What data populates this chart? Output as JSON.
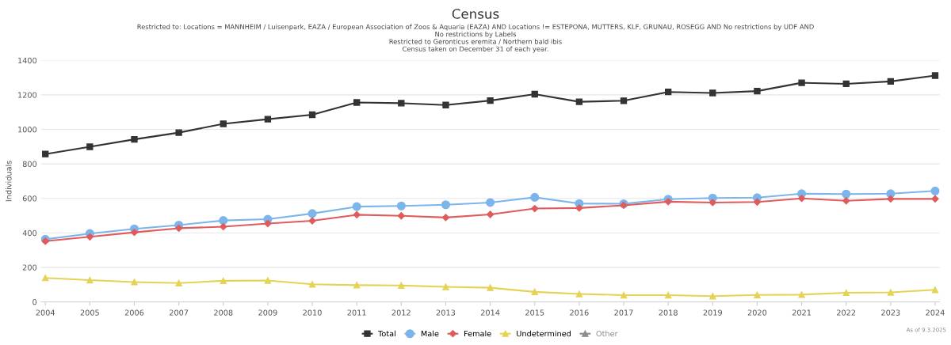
{
  "chart_data": {
    "type": "line",
    "title": "Census",
    "subtitle": "Restricted to: Locations = MANNHEIM / Luisenpark, EAZA / European Association of Zoos & Aquaria (EAZA) AND Locations != ESTEPONA, MUTTERS, KLF, GRUNAU, ROSEGG AND No restrictions by UDF AND\nNo restrictions by Labels\nRestricted to Geronticus eremita / Northern bald ibis\nCensus taken on December 31 of each year.",
    "ylabel": "Individuals",
    "categories": [
      "2004",
      "2005",
      "2006",
      "2007",
      "2008",
      "2009",
      "2010",
      "2011",
      "2012",
      "2013",
      "2014",
      "2015",
      "2016",
      "2017",
      "2018",
      "2019",
      "2020",
      "2021",
      "2022",
      "2023",
      "2024"
    ],
    "series": [
      {
        "name": "Total",
        "color": "#333333",
        "marker": "square",
        "values": [
          857,
          899,
          942,
          981,
          1032,
          1059,
          1085,
          1156,
          1152,
          1141,
          1167,
          1204,
          1160,
          1166,
          1217,
          1211,
          1222,
          1270,
          1264,
          1278,
          1312
        ]
      },
      {
        "name": "Male",
        "color": "#7cb5ec",
        "marker": "circle",
        "values": [
          363,
          396,
          423,
          445,
          472,
          479,
          512,
          552,
          556,
          563,
          576,
          606,
          570,
          569,
          595,
          602,
          604,
          627,
          625,
          627,
          643
        ]
      },
      {
        "name": "Female",
        "color": "#e05b5b",
        "marker": "diamond",
        "values": [
          352,
          377,
          403,
          427,
          436,
          454,
          470,
          505,
          499,
          489,
          507,
          541,
          544,
          560,
          581,
          576,
          579,
          600,
          586,
          597,
          597
        ]
      },
      {
        "name": "Undetermined",
        "color": "#e4d354",
        "marker": "triangle",
        "values": [
          139,
          126,
          115,
          109,
          122,
          124,
          102,
          97,
          95,
          87,
          82,
          58,
          46,
          39,
          39,
          33,
          40,
          42,
          53,
          55,
          70
        ]
      },
      {
        "name": "Other",
        "color": "#8c8c8c",
        "marker": "triangle",
        "values": [
          null,
          null,
          null,
          null,
          null,
          null,
          null,
          null,
          null,
          null,
          null,
          null,
          null,
          null,
          null,
          null,
          null,
          null,
          null,
          null,
          null
        ]
      }
    ],
    "ylim": [
      0,
      1400
    ],
    "yticks": [
      0,
      200,
      400,
      600,
      800,
      1000,
      1200,
      1400
    ],
    "grid": "y",
    "legend": "bottom",
    "annotations": [
      "As of 9.3.2025"
    ]
  }
}
